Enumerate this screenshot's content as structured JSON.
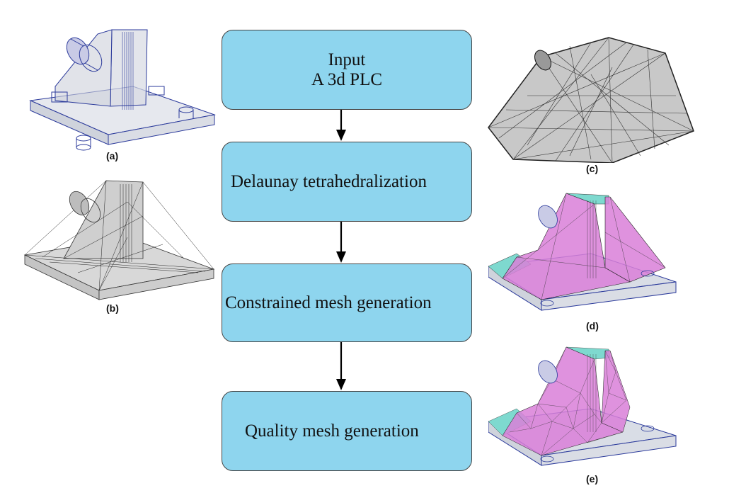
{
  "flow": {
    "steps": [
      {
        "lines": [
          "Input",
          "A 3d PLC"
        ]
      },
      {
        "lines": [
          "Delaunay tetrahedralization"
        ]
      },
      {
        "lines": [
          "Constrained mesh generation"
        ]
      },
      {
        "lines": [
          "Quality mesh generation"
        ]
      }
    ]
  },
  "figures": {
    "a": {
      "caption": "(a)"
    },
    "b": {
      "caption": "(b)"
    },
    "c": {
      "caption": "(c)"
    },
    "d": {
      "caption": "(d)"
    },
    "e": {
      "caption": "(e)"
    }
  },
  "colors": {
    "box_fill": "#8ed5ee",
    "mesh_wire": "#2b3a9b",
    "mesh_gray": "#9a9a9a",
    "magenta_fill": "#d97fd8",
    "cyan_fill": "#7ed9cf"
  }
}
